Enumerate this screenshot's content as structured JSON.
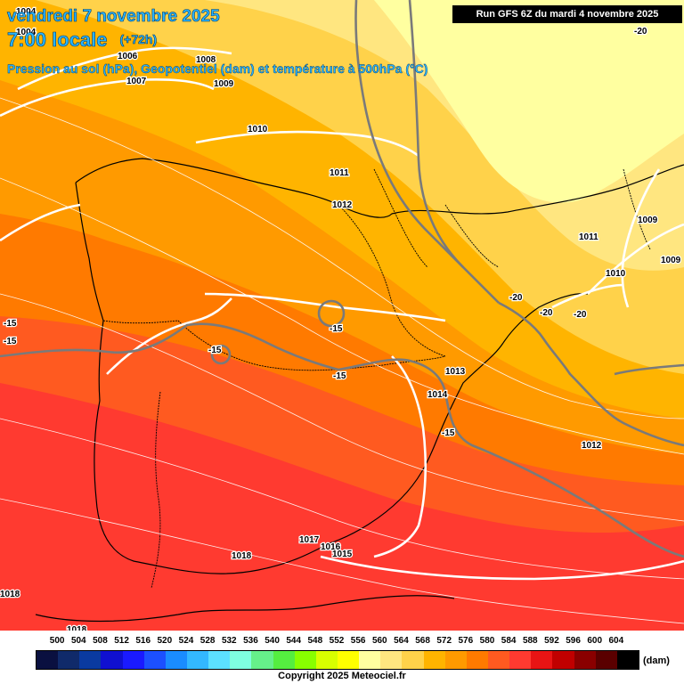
{
  "header": {
    "date_line": "vendredi 7 novembre 2025",
    "time_line": "7:00 locale",
    "lead_time": "(+72h)",
    "param_line": "Pression au sol (hPa), Geopotentiel (dam) et température à 500hPa (°C)",
    "run_info": "Run GFS 6Z du mardi 4 novembre 2025"
  },
  "pressure_labels": [
    "1004",
    "1004",
    "1006",
    "1007",
    "1008",
    "1009",
    "1010",
    "1011",
    "1012",
    "1011",
    "1009",
    "1009",
    "1010",
    "1013",
    "1014",
    "1012",
    "1017",
    "1016",
    "1015",
    "1018",
    "1018",
    "1018"
  ],
  "temperature_labels": [
    "-20",
    "-20",
    "-20",
    "-20",
    "-15",
    "-15",
    "-15",
    "-15",
    "-15",
    "-15"
  ],
  "legend": {
    "values": [
      "500",
      "504",
      "508",
      "512",
      "516",
      "520",
      "524",
      "528",
      "532",
      "536",
      "540",
      "544",
      "548",
      "552",
      "556",
      "560",
      "564",
      "568",
      "572",
      "576",
      "580",
      "584",
      "588",
      "592",
      "596",
      "600",
      "604"
    ],
    "colors": [
      "#0a1040",
      "#102a6a",
      "#0a3aa0",
      "#1010d0",
      "#1a1aff",
      "#1c50ff",
      "#1a8cff",
      "#33b8ff",
      "#5ce0ff",
      "#7fffe0",
      "#66f08a",
      "#55ee40",
      "#88ff00",
      "#d8ff00",
      "#ffff00",
      "#ffffa0",
      "#ffe680",
      "#ffd24a",
      "#ffb400",
      "#ff9a00",
      "#ff7a00",
      "#ff5a20",
      "#ff3a30",
      "#e81414",
      "#c00000",
      "#8a0000",
      "#5a0000",
      "#000000"
    ],
    "unit": "(dam)"
  },
  "footer": {
    "copyright": "Copyright 2025 Meteociel.fr"
  }
}
